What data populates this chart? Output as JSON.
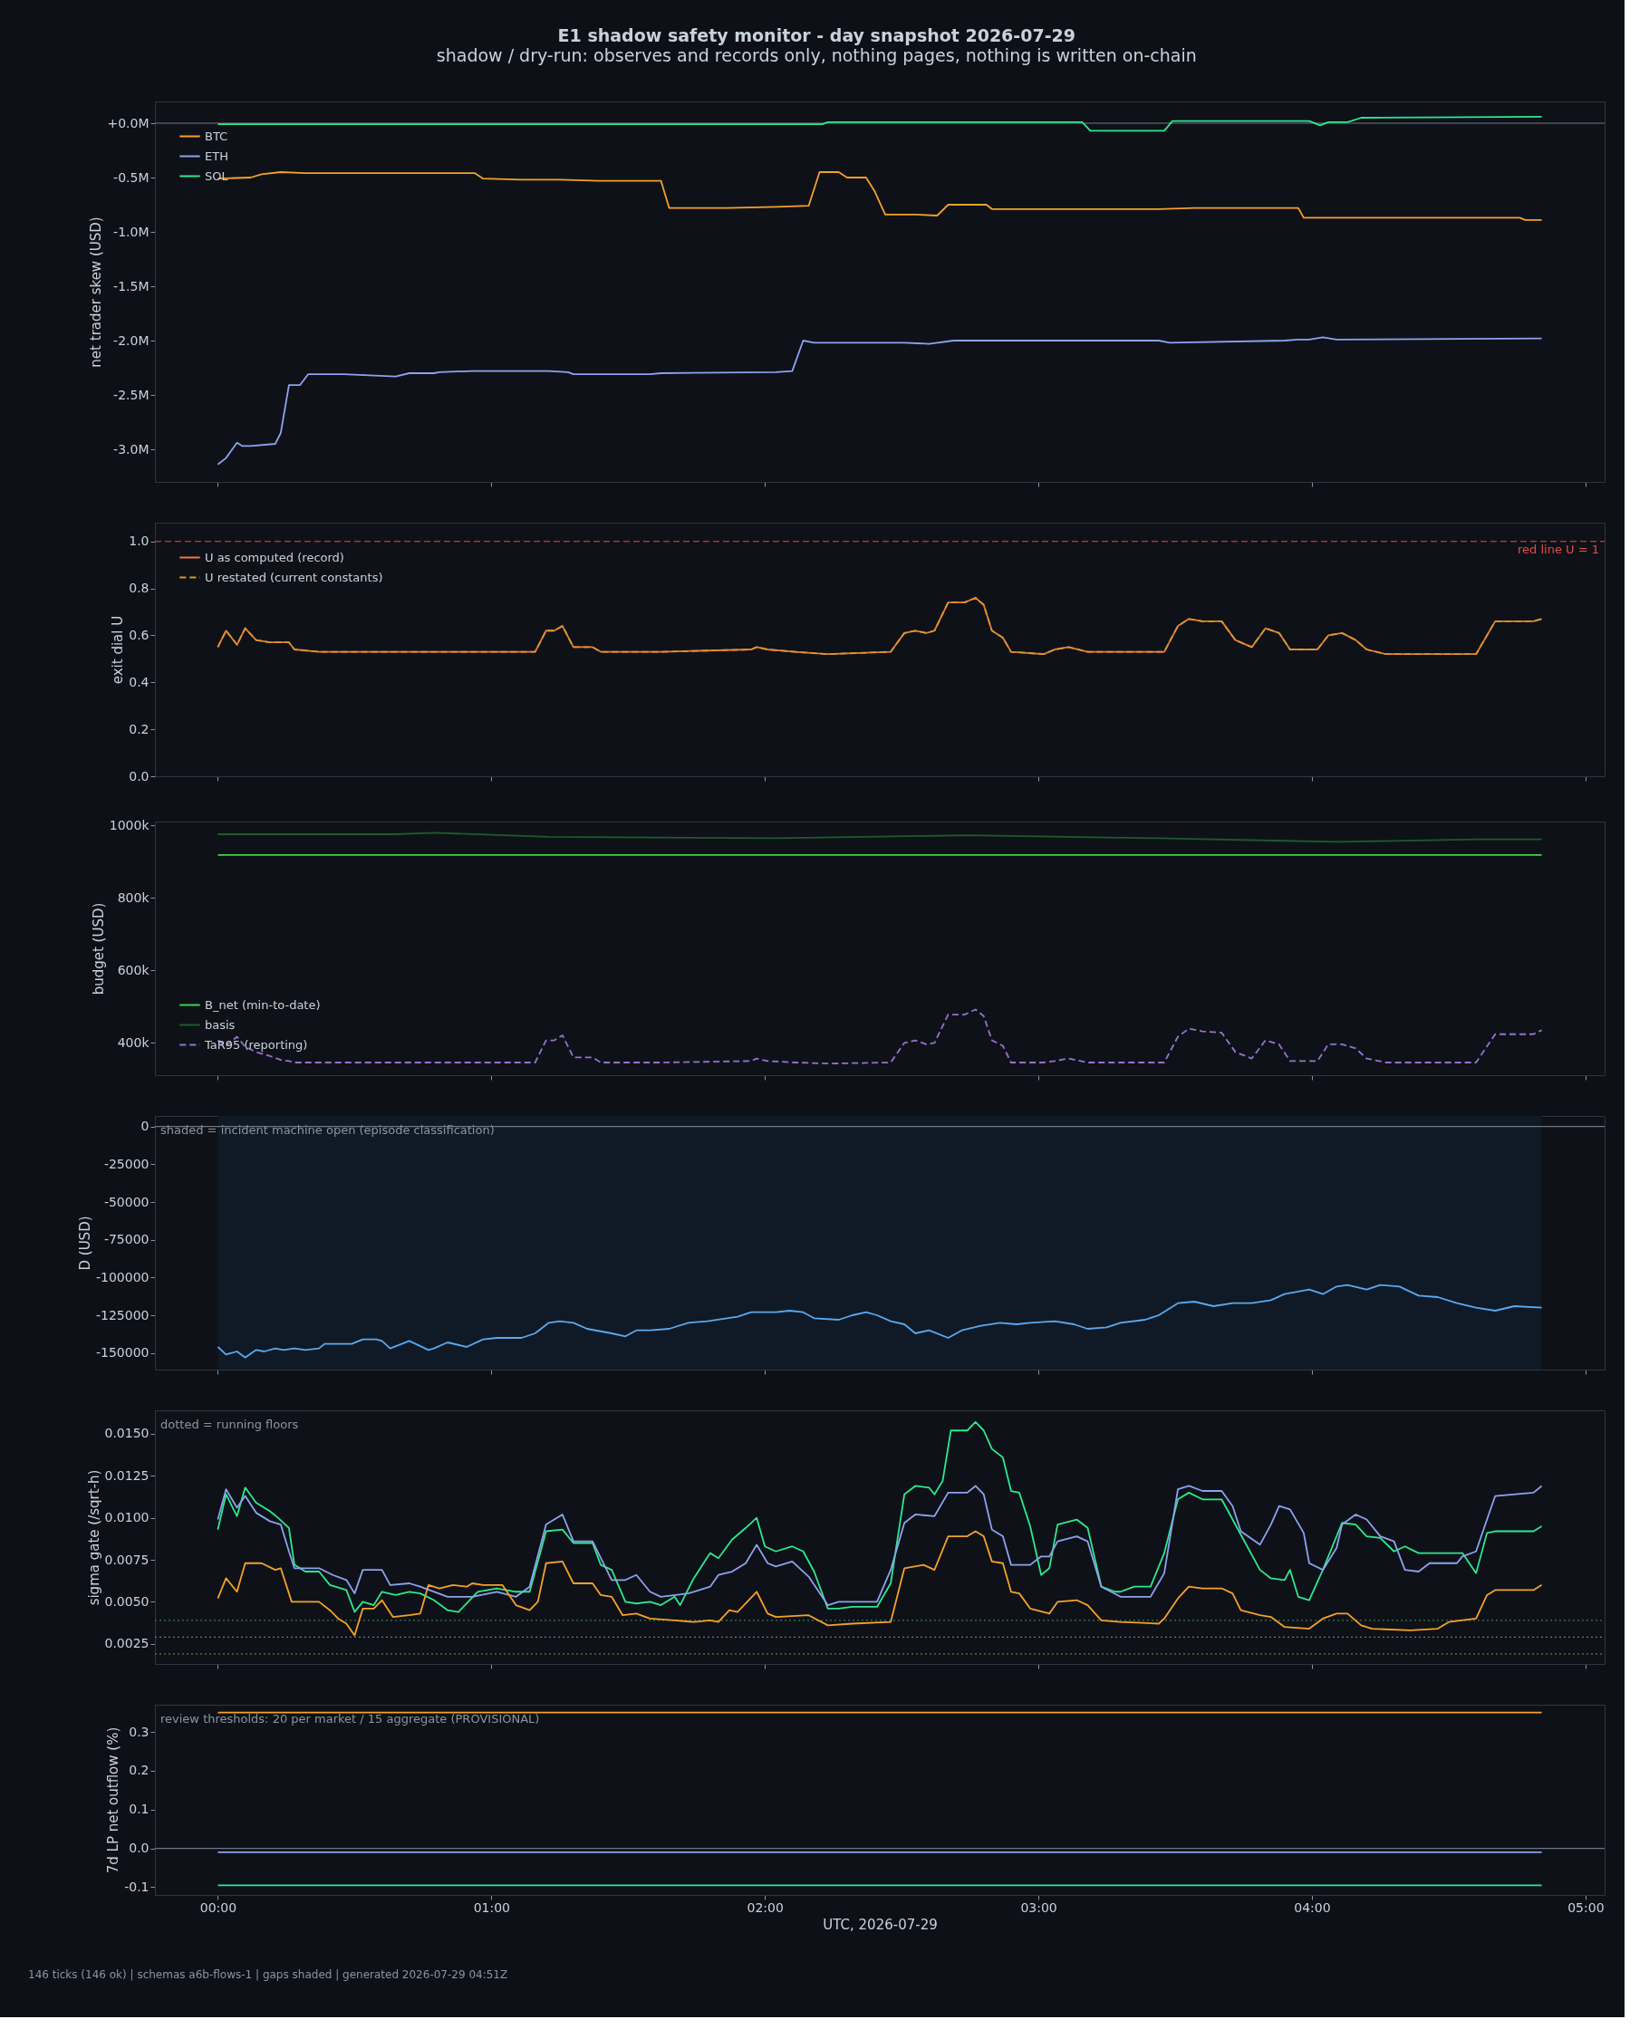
{
  "chart_data": [
    {
      "type": "line",
      "title": "E1 shadow safety monitor - day snapshot 2026-07-29",
      "subtitle": "shadow / dry-run: observes and records only, nothing pages, nothing is written on-chain",
      "ylabel": "net trader skew (USD)",
      "legend": "top left",
      "tick_labels": "y",
      "xlim": [
        -0.23,
        5.07
      ],
      "xticks": [
        {
          "value": 0,
          "label": null
        },
        {
          "value": 1,
          "label": null
        },
        {
          "value": 2,
          "label": null
        },
        {
          "value": 3,
          "label": null
        },
        {
          "value": 4,
          "label": null
        },
        {
          "value": 5,
          "label": null
        }
      ],
      "ylim": [
        -3.3,
        0.2
      ],
      "yticks": [
        {
          "value": 0,
          "label": "+0.0M"
        },
        {
          "value": -0.5,
          "label": "-0.5M"
        },
        {
          "value": -1,
          "label": "-1.0M"
        },
        {
          "value": -1.5,
          "label": "-1.5M"
        },
        {
          "value": -2,
          "label": "-2.0M"
        },
        {
          "value": -2.5,
          "label": "-2.5M"
        },
        {
          "value": -3,
          "label": "-3.0M"
        }
      ],
      "ref_lines": [
        {
          "axis": "y",
          "value": 0,
          "color": "#6e7681"
        }
      ],
      "series": [
        {
          "name": "BTC",
          "color": "#f5a12a",
          "x": [
            0,
            0.12,
            0.16,
            0.23,
            0.32,
            0.42,
            0.65,
            0.84,
            0.94,
            0.97,
            1.11,
            1.25,
            1.39,
            1.62,
            1.65,
            1.86,
            2.04,
            2.16,
            2.2,
            2.27,
            2.3,
            2.37,
            2.4,
            2.44,
            2.55,
            2.63,
            2.67,
            2.81,
            2.83,
            3.11,
            3.44,
            3.57,
            3.95,
            3.97,
            4.36,
            4.6,
            4.76,
            4.78,
            4.84
          ],
          "values": [
            -0.51,
            -0.5,
            -0.47,
            -0.45,
            -0.46,
            -0.46,
            -0.46,
            -0.46,
            -0.46,
            -0.51,
            -0.52,
            -0.52,
            -0.53,
            -0.53,
            -0.78,
            -0.78,
            -0.77,
            -0.76,
            -0.45,
            -0.45,
            -0.5,
            -0.5,
            -0.62,
            -0.84,
            -0.84,
            -0.85,
            -0.75,
            -0.75,
            -0.79,
            -0.79,
            -0.79,
            -0.78,
            -0.78,
            -0.87,
            -0.87,
            -0.87,
            -0.87,
            -0.89,
            -0.89
          ]
        },
        {
          "name": "ETH",
          "color": "#8da2f0",
          "x": [
            0,
            0.03,
            0.07,
            0.09,
            0.12,
            0.21,
            0.23,
            0.26,
            0.3,
            0.33,
            0.46,
            0.65,
            0.7,
            0.79,
            0.81,
            0.93,
            1.21,
            1.28,
            1.3,
            1.58,
            1.62,
            2.04,
            2.1,
            2.14,
            2.18,
            2.51,
            2.6,
            2.69,
            3.44,
            3.48,
            3.9,
            3.95,
            3.99,
            4.04,
            4.09,
            4.84
          ],
          "values": [
            -3.14,
            -3.08,
            -2.94,
            -2.97,
            -2.97,
            -2.95,
            -2.85,
            -2.41,
            -2.41,
            -2.31,
            -2.31,
            -2.33,
            -2.3,
            -2.3,
            -2.29,
            -2.28,
            -2.28,
            -2.29,
            -2.31,
            -2.31,
            -2.3,
            -2.29,
            -2.28,
            -2.0,
            -2.02,
            -2.02,
            -2.03,
            -2.0,
            -2.0,
            -2.02,
            -2.0,
            -1.99,
            -1.99,
            -1.97,
            -1.99,
            -1.98
          ]
        },
        {
          "name": "SOL",
          "color": "#2ee88f",
          "x": [
            0,
            2.21,
            2.23,
            3.16,
            3.19,
            3.46,
            3.49,
            3.99,
            4.03,
            4.06,
            4.13,
            4.18,
            4.84
          ],
          "values": [
            -0.01,
            -0.01,
            0.01,
            0.01,
            -0.07,
            -0.07,
            0.02,
            0.02,
            -0.02,
            0.01,
            0.01,
            0.05,
            0.06
          ]
        }
      ]
    },
    {
      "type": "line",
      "ylabel": "exit dial U",
      "legend": "top left",
      "tick_labels": "y",
      "xlim": [
        -0.23,
        5.07
      ],
      "xticks": [
        {
          "value": 0,
          "label": null
        },
        {
          "value": 1,
          "label": null
        },
        {
          "value": 2,
          "label": null
        },
        {
          "value": 3,
          "label": null
        },
        {
          "value": 4,
          "label": null
        },
        {
          "value": 5,
          "label": null
        }
      ],
      "ylim": [
        0,
        1.08
      ],
      "yticks": [
        {
          "value": 0,
          "label": "0.0"
        },
        0.2,
        0.4,
        0.6,
        0.8,
        {
          "value": 1,
          "label": "1.0"
        }
      ],
      "ref_lines": [
        {
          "axis": "y",
          "value": 1,
          "label": "red line U = 1",
          "color": "#e84a4a",
          "line_style": "dashed"
        }
      ],
      "series": [
        {
          "name": "U as computed (record)",
          "color": "#f0783c",
          "line_style": "solid",
          "x": [
            0,
            0.03,
            0.07,
            0.1,
            0.14,
            0.19,
            0.23,
            0.26,
            0.28,
            0.37,
            0.65,
            1.16,
            1.2,
            1.23,
            1.26,
            1.3,
            1.37,
            1.4,
            1.62,
            1.95,
            1.97,
            2.01,
            2.11,
            2.23,
            2.46,
            2.51,
            2.55,
            2.59,
            2.62,
            2.67,
            2.73,
            2.77,
            2.8,
            2.83,
            2.87,
            2.9,
            3.02,
            3.06,
            3.11,
            3.18,
            3.25,
            3.46,
            3.51,
            3.55,
            3.6,
            3.67,
            3.72,
            3.78,
            3.83,
            3.88,
            3.92,
            4.02,
            4.06,
            4.11,
            4.16,
            4.2,
            4.27,
            4.6,
            4.67,
            4.81,
            4.84
          ],
          "values": [
            0.55,
            0.62,
            0.56,
            0.63,
            0.58,
            0.57,
            0.57,
            0.57,
            0.54,
            0.53,
            0.53,
            0.53,
            0.62,
            0.62,
            0.64,
            0.55,
            0.55,
            0.53,
            0.53,
            0.54,
            0.55,
            0.54,
            0.53,
            0.52,
            0.53,
            0.61,
            0.62,
            0.61,
            0.62,
            0.74,
            0.74,
            0.76,
            0.73,
            0.62,
            0.59,
            0.53,
            0.52,
            0.54,
            0.55,
            0.53,
            0.53,
            0.53,
            0.64,
            0.67,
            0.66,
            0.66,
            0.58,
            0.55,
            0.63,
            0.61,
            0.54,
            0.54,
            0.6,
            0.61,
            0.58,
            0.54,
            0.52,
            0.52,
            0.66,
            0.66,
            0.67
          ]
        },
        {
          "name": "U restated (current constants)",
          "color": "#d49a2a",
          "line_style": "dashed",
          "x": [
            0,
            0.03,
            0.07,
            0.1,
            0.14,
            0.19,
            0.23,
            0.26,
            0.28,
            0.37,
            0.65,
            1.16,
            1.2,
            1.23,
            1.26,
            1.3,
            1.37,
            1.4,
            1.62,
            1.95,
            1.97,
            2.01,
            2.11,
            2.23,
            2.46,
            2.51,
            2.55,
            2.59,
            2.62,
            2.67,
            2.73,
            2.77,
            2.8,
            2.83,
            2.87,
            2.9,
            3.02,
            3.06,
            3.11,
            3.18,
            3.25,
            3.46,
            3.51,
            3.55,
            3.6,
            3.67,
            3.72,
            3.78,
            3.83,
            3.88,
            3.92,
            4.02,
            4.06,
            4.11,
            4.16,
            4.2,
            4.27,
            4.6,
            4.67,
            4.81,
            4.84
          ],
          "values": [
            0.55,
            0.62,
            0.56,
            0.63,
            0.58,
            0.57,
            0.57,
            0.57,
            0.54,
            0.53,
            0.53,
            0.53,
            0.62,
            0.62,
            0.64,
            0.55,
            0.55,
            0.53,
            0.53,
            0.54,
            0.55,
            0.54,
            0.53,
            0.52,
            0.53,
            0.61,
            0.62,
            0.61,
            0.62,
            0.74,
            0.74,
            0.76,
            0.73,
            0.62,
            0.59,
            0.53,
            0.52,
            0.54,
            0.55,
            0.53,
            0.53,
            0.53,
            0.64,
            0.67,
            0.66,
            0.66,
            0.58,
            0.55,
            0.63,
            0.61,
            0.54,
            0.54,
            0.6,
            0.61,
            0.58,
            0.54,
            0.52,
            0.52,
            0.66,
            0.66,
            0.67
          ]
        }
      ]
    },
    {
      "type": "line",
      "ylabel": "budget (USD)",
      "legend": "bottom left",
      "tick_labels": "y",
      "xlim": [
        -0.23,
        5.07
      ],
      "xticks": [
        {
          "value": 0,
          "label": null
        },
        {
          "value": 1,
          "label": null
        },
        {
          "value": 2,
          "label": null
        },
        {
          "value": 3,
          "label": null
        },
        {
          "value": 4,
          "label": null
        },
        {
          "value": 5,
          "label": null
        }
      ],
      "ylim": [
        311000,
        1010000
      ],
      "yticks": [
        {
          "value": 400000,
          "label": "400k"
        },
        {
          "value": 600000,
          "label": "600k"
        },
        {
          "value": 800000,
          "label": "800k"
        },
        {
          "value": 1000000,
          "label": "1000k"
        }
      ],
      "series": [
        {
          "name": "B_net (min-to-date)",
          "color": "#3fd150",
          "line_style": "solid",
          "x": [
            0,
            4.84
          ],
          "values": [
            918000,
            918000
          ]
        },
        {
          "name": "basis",
          "color": "#1f5a2a",
          "line_style": "solid",
          "x": [
            0,
            0.65,
            0.79,
            1.21,
            2.04,
            2.74,
            3.44,
            3.9,
            4.09,
            4.6,
            4.84
          ],
          "values": [
            975000,
            975000,
            979000,
            968000,
            964000,
            972000,
            964000,
            957000,
            954000,
            961000,
            961000
          ]
        },
        {
          "name": "TaR95 (reporting)",
          "color": "#9b6fd0",
          "line_style": "dashed",
          "x": [
            0,
            0.03,
            0.07,
            0.1,
            0.14,
            0.19,
            0.23,
            0.26,
            0.28,
            0.37,
            0.65,
            1.16,
            1.2,
            1.23,
            1.26,
            1.3,
            1.37,
            1.4,
            1.62,
            1.95,
            1.97,
            2.01,
            2.11,
            2.23,
            2.46,
            2.51,
            2.55,
            2.59,
            2.62,
            2.67,
            2.73,
            2.77,
            2.8,
            2.83,
            2.87,
            2.9,
            3.02,
            3.06,
            3.11,
            3.18,
            3.25,
            3.46,
            3.51,
            3.55,
            3.6,
            3.67,
            3.72,
            3.78,
            3.83,
            3.88,
            3.92,
            4.02,
            4.06,
            4.11,
            4.16,
            4.2,
            4.27,
            4.6,
            4.67,
            4.81,
            4.84
          ],
          "values": [
            407000,
            392000,
            417000,
            389000,
            375000,
            364000,
            353000,
            350000,
            346000,
            346000,
            346000,
            346000,
            407000,
            407000,
            421000,
            360000,
            360000,
            346000,
            346000,
            350000,
            357000,
            350000,
            346000,
            343000,
            346000,
            400000,
            407000,
            396000,
            400000,
            478000,
            478000,
            492000,
            474000,
            407000,
            392000,
            346000,
            346000,
            350000,
            357000,
            346000,
            346000,
            346000,
            417000,
            439000,
            432000,
            428000,
            375000,
            357000,
            407000,
            396000,
            350000,
            350000,
            396000,
            396000,
            385000,
            357000,
            346000,
            346000,
            424000,
            424000,
            435000
          ]
        }
      ]
    },
    {
      "type": "line",
      "ylabel": "D (USD)",
      "tick_labels": "y",
      "xlim": [
        -0.23,
        5.07
      ],
      "xticks": [
        {
          "value": 0,
          "label": null
        },
        {
          "value": 1,
          "label": null
        },
        {
          "value": 2,
          "label": null
        },
        {
          "value": 3,
          "label": null
        },
        {
          "value": 4,
          "label": null
        },
        {
          "value": 5,
          "label": null
        }
      ],
      "ylim": [
        -161000,
        7000
      ],
      "yticks": [
        0,
        -25000,
        -50000,
        -75000,
        -100000,
        -125000,
        -150000
      ],
      "ref_lines": [
        {
          "axis": "y",
          "value": 0,
          "color": "#6e7681"
        }
      ],
      "bands": [
        {
          "axis": "x",
          "from": 0,
          "to": 4.84,
          "label": "shaded = incident machine open (episode classification)",
          "color": "#0f1a26"
        }
      ],
      "series": [
        {
          "color": "#5aa9f0",
          "x": [
            0,
            0.03,
            0.07,
            0.1,
            0.14,
            0.17,
            0.21,
            0.24,
            0.28,
            0.32,
            0.37,
            0.39,
            0.49,
            0.53,
            0.58,
            0.6,
            0.63,
            0.7,
            0.77,
            0.79,
            0.84,
            0.91,
            0.97,
            1.02,
            1.11,
            1.16,
            1.21,
            1.25,
            1.3,
            1.35,
            1.44,
            1.49,
            1.53,
            1.58,
            1.65,
            1.72,
            1.79,
            1.9,
            1.95,
            2.04,
            2.09,
            2.14,
            2.18,
            2.27,
            2.32,
            2.37,
            2.41,
            2.46,
            2.51,
            2.55,
            2.6,
            2.67,
            2.72,
            2.79,
            2.86,
            2.92,
            2.97,
            3.06,
            3.13,
            3.18,
            3.25,
            3.3,
            3.39,
            3.44,
            3.51,
            3.57,
            3.64,
            3.71,
            3.78,
            3.85,
            3.9,
            3.99,
            4.04,
            4.09,
            4.13,
            4.2,
            4.25,
            4.32,
            4.39,
            4.46,
            4.53,
            4.6,
            4.67,
            4.74,
            4.84
          ],
          "values": [
            -146000,
            -151000,
            -149000,
            -153000,
            -148000,
            -149000,
            -147000,
            -148000,
            -147000,
            -148000,
            -147000,
            -144000,
            -144000,
            -141000,
            -141000,
            -142000,
            -147000,
            -142000,
            -148000,
            -147000,
            -143000,
            -146000,
            -141000,
            -140000,
            -140000,
            -137000,
            -130000,
            -129000,
            -130000,
            -134000,
            -137000,
            -139000,
            -135000,
            -135000,
            -134000,
            -130000,
            -129000,
            -126000,
            -123000,
            -123000,
            -122000,
            -123000,
            -127000,
            -128000,
            -125000,
            -123000,
            -125000,
            -129000,
            -131000,
            -137000,
            -135000,
            -140000,
            -135000,
            -132000,
            -130000,
            -131000,
            -130000,
            -129000,
            -131000,
            -134000,
            -133000,
            -130000,
            -128000,
            -125000,
            -117000,
            -116000,
            -119000,
            -117000,
            -117000,
            -115000,
            -111000,
            -108000,
            -111000,
            -106000,
            -105000,
            -108000,
            -105000,
            -106000,
            -112000,
            -113000,
            -117000,
            -120000,
            -122000,
            -119000,
            -120000
          ]
        }
      ]
    },
    {
      "type": "line",
      "ylabel": "sigma gate (/sqrt-h)",
      "tick_labels": "y",
      "annotations": [
        "dotted = running floors"
      ],
      "xlim": [
        -0.23,
        5.07
      ],
      "xticks": [
        {
          "value": 0,
          "label": null
        },
        {
          "value": 1,
          "label": null
        },
        {
          "value": 2,
          "label": null
        },
        {
          "value": 3,
          "label": null
        },
        {
          "value": 4,
          "label": null
        },
        {
          "value": 5,
          "label": null
        }
      ],
      "ylim": [
        0.0013,
        0.0164
      ],
      "yticks": [
        0.0025,
        {
          "value": 0.005,
          "label": "0.0050"
        },
        {
          "value": 0.0075,
          "label": "0.0075"
        },
        {
          "value": 0.01,
          "label": "0.0100"
        },
        0.0125,
        {
          "value": 0.015,
          "label": "0.0150"
        }
      ],
      "ref_lines": [
        {
          "axis": "y",
          "value": 0.0039,
          "color": "#3a7a4a",
          "line_style": "dotted"
        },
        {
          "axis": "y",
          "value": 0.0029,
          "color": "#6e7681",
          "line_style": "dotted"
        },
        {
          "axis": "y",
          "value": 0.0019,
          "color": "#8a6a2a",
          "line_style": "dotted"
        }
      ],
      "series": [
        {
          "color": "#2ee88f",
          "x": [
            0,
            0.03,
            0.07,
            0.1,
            0.14,
            0.19,
            0.22,
            0.26,
            0.28,
            0.32,
            0.37,
            0.41,
            0.47,
            0.5,
            0.53,
            0.57,
            0.6,
            0.65,
            0.7,
            0.74,
            0.79,
            0.84,
            0.88,
            0.95,
            1.02,
            1.09,
            1.14,
            1.2,
            1.26,
            1.3,
            1.37,
            1.4,
            1.44,
            1.49,
            1.53,
            1.58,
            1.62,
            1.67,
            1.69,
            1.74,
            1.8,
            1.83,
            1.88,
            1.93,
            1.97,
            2.0,
            2.04,
            2.1,
            2.14,
            2.18,
            2.23,
            2.27,
            2.32,
            2.41,
            2.46,
            2.51,
            2.55,
            2.6,
            2.62,
            2.65,
            2.68,
            2.74,
            2.77,
            2.8,
            2.83,
            2.87,
            2.9,
            2.93,
            2.97,
            3.01,
            3.04,
            3.07,
            3.14,
            3.18,
            3.23,
            3.28,
            3.3,
            3.35,
            3.41,
            3.46,
            3.51,
            3.55,
            3.6,
            3.67,
            3.74,
            3.81,
            3.85,
            3.9,
            3.92,
            3.95,
            3.99,
            4.04,
            4.11,
            4.16,
            4.2,
            4.25,
            4.3,
            4.34,
            4.39,
            4.55,
            4.6,
            4.64,
            4.67,
            4.81,
            4.84
          ],
          "values": [
            0.0093,
            0.0114,
            0.0101,
            0.0118,
            0.0109,
            0.0104,
            0.01,
            0.0094,
            0.0072,
            0.0068,
            0.0068,
            0.006,
            0.0057,
            0.0044,
            0.005,
            0.0048,
            0.0056,
            0.0054,
            0.0056,
            0.0055,
            0.0051,
            0.0045,
            0.0044,
            0.0056,
            0.0058,
            0.0056,
            0.0056,
            0.0092,
            0.0093,
            0.0085,
            0.0085,
            0.0072,
            0.0069,
            0.005,
            0.0049,
            0.005,
            0.0048,
            0.0053,
            0.0048,
            0.0064,
            0.0079,
            0.0076,
            0.0087,
            0.0094,
            0.01,
            0.0083,
            0.008,
            0.0083,
            0.008,
            0.0068,
            0.0046,
            0.0046,
            0.0047,
            0.0047,
            0.0061,
            0.0114,
            0.0119,
            0.0118,
            0.0114,
            0.0122,
            0.0152,
            0.0152,
            0.0157,
            0.0152,
            0.0141,
            0.0136,
            0.0116,
            0.0115,
            0.0095,
            0.0066,
            0.007,
            0.0096,
            0.0099,
            0.0094,
            0.0059,
            0.0056,
            0.0056,
            0.0059,
            0.0059,
            0.0079,
            0.0111,
            0.0115,
            0.0111,
            0.0111,
            0.009,
            0.0069,
            0.0064,
            0.0063,
            0.0069,
            0.0053,
            0.0051,
            0.0069,
            0.0097,
            0.0096,
            0.0089,
            0.0088,
            0.008,
            0.0083,
            0.0079,
            0.0079,
            0.0067,
            0.0091,
            0.0092,
            0.0092,
            0.0095
          ]
        },
        {
          "color": "#8da2f0",
          "x": [
            0,
            0.03,
            0.07,
            0.1,
            0.14,
            0.19,
            0.23,
            0.26,
            0.28,
            0.37,
            0.42,
            0.47,
            0.5,
            0.53,
            0.6,
            0.63,
            0.7,
            0.74,
            0.84,
            0.93,
            1.02,
            1.09,
            1.14,
            1.2,
            1.26,
            1.3,
            1.37,
            1.44,
            1.49,
            1.53,
            1.58,
            1.62,
            1.72,
            1.74,
            1.8,
            1.83,
            1.88,
            1.93,
            1.97,
            2.01,
            2.04,
            2.1,
            2.16,
            2.23,
            2.27,
            2.41,
            2.46,
            2.51,
            2.55,
            2.62,
            2.67,
            2.74,
            2.77,
            2.8,
            2.83,
            2.87,
            2.9,
            2.97,
            3.01,
            3.04,
            3.07,
            3.14,
            3.18,
            3.23,
            3.3,
            3.41,
            3.46,
            3.51,
            3.55,
            3.6,
            3.67,
            3.71,
            3.74,
            3.81,
            3.85,
            3.88,
            3.92,
            3.97,
            3.99,
            4.04,
            4.09,
            4.11,
            4.16,
            4.2,
            4.25,
            4.3,
            4.34,
            4.39,
            4.43,
            4.53,
            4.55,
            4.6,
            4.64,
            4.67,
            4.81,
            4.84
          ],
          "values": [
            0.0099,
            0.0117,
            0.0106,
            0.0113,
            0.0103,
            0.0098,
            0.0096,
            0.008,
            0.007,
            0.007,
            0.0066,
            0.0063,
            0.0055,
            0.0069,
            0.0069,
            0.006,
            0.0061,
            0.0059,
            0.0053,
            0.0053,
            0.0056,
            0.0053,
            0.0059,
            0.0096,
            0.0102,
            0.0086,
            0.0086,
            0.0063,
            0.0063,
            0.0066,
            0.0056,
            0.0053,
            0.0055,
            0.0056,
            0.0059,
            0.0066,
            0.0068,
            0.0073,
            0.0084,
            0.0073,
            0.0071,
            0.0074,
            0.0065,
            0.0048,
            0.005,
            0.005,
            0.0069,
            0.0097,
            0.0102,
            0.0101,
            0.0115,
            0.0115,
            0.0119,
            0.0114,
            0.0093,
            0.0089,
            0.0072,
            0.0072,
            0.0077,
            0.0077,
            0.0086,
            0.0089,
            0.0086,
            0.0059,
            0.0053,
            0.0053,
            0.0067,
            0.0117,
            0.0119,
            0.0116,
            0.0116,
            0.0107,
            0.0092,
            0.0084,
            0.0096,
            0.0107,
            0.0105,
            0.0091,
            0.0073,
            0.0069,
            0.0082,
            0.0096,
            0.0102,
            0.0099,
            0.0089,
            0.0086,
            0.0069,
            0.0068,
            0.0073,
            0.0073,
            0.0077,
            0.008,
            0.0099,
            0.0113,
            0.0115,
            0.0119
          ]
        },
        {
          "color": "#f5a12a",
          "x": [
            0,
            0.03,
            0.07,
            0.1,
            0.16,
            0.21,
            0.23,
            0.27,
            0.37,
            0.41,
            0.44,
            0.47,
            0.5,
            0.53,
            0.57,
            0.6,
            0.64,
            0.7,
            0.74,
            0.77,
            0.81,
            0.86,
            0.91,
            0.93,
            0.97,
            1.04,
            1.09,
            1.14,
            1.17,
            1.2,
            1.26,
            1.3,
            1.37,
            1.4,
            1.44,
            1.48,
            1.53,
            1.58,
            1.67,
            1.74,
            1.8,
            1.83,
            1.87,
            1.9,
            1.97,
            2.01,
            2.04,
            2.16,
            2.23,
            2.32,
            2.46,
            2.51,
            2.58,
            2.62,
            2.67,
            2.74,
            2.77,
            2.8,
            2.83,
            2.87,
            2.9,
            2.93,
            2.97,
            3.04,
            3.07,
            3.14,
            3.18,
            3.23,
            3.3,
            3.44,
            3.46,
            3.51,
            3.55,
            3.6,
            3.67,
            3.71,
            3.74,
            3.81,
            3.85,
            3.9,
            3.99,
            4.04,
            4.09,
            4.13,
            4.18,
            4.22,
            4.36,
            4.46,
            4.5,
            4.6,
            4.64,
            4.67,
            4.81,
            4.84
          ],
          "values": [
            0.0052,
            0.0064,
            0.0056,
            0.0073,
            0.0073,
            0.0069,
            0.007,
            0.005,
            0.005,
            0.0045,
            0.004,
            0.0037,
            0.003,
            0.0046,
            0.0046,
            0.0051,
            0.0041,
            0.0042,
            0.0043,
            0.006,
            0.0058,
            0.006,
            0.0059,
            0.0061,
            0.006,
            0.006,
            0.0048,
            0.0045,
            0.005,
            0.0073,
            0.0074,
            0.0061,
            0.0061,
            0.0054,
            0.0053,
            0.0042,
            0.0043,
            0.004,
            0.0039,
            0.0038,
            0.0039,
            0.0038,
            0.0045,
            0.0044,
            0.0056,
            0.0043,
            0.0041,
            0.0042,
            0.0036,
            0.0037,
            0.0038,
            0.007,
            0.0072,
            0.0069,
            0.0089,
            0.0089,
            0.0092,
            0.0089,
            0.0074,
            0.0073,
            0.0056,
            0.0055,
            0.0046,
            0.0043,
            0.005,
            0.0051,
            0.0048,
            0.0039,
            0.0038,
            0.0037,
            0.004,
            0.0052,
            0.0059,
            0.0058,
            0.0058,
            0.0055,
            0.0045,
            0.0042,
            0.0041,
            0.0035,
            0.0034,
            0.004,
            0.0043,
            0.0043,
            0.0036,
            0.0034,
            0.0033,
            0.0034,
            0.0038,
            0.004,
            0.0054,
            0.0057,
            0.0057,
            0.006
          ]
        }
      ]
    },
    {
      "type": "line",
      "ylabel": "7d LP net outflow (%)",
      "xlabel": "UTC, 2026-07-29",
      "annotations": [
        "review thresholds: 20 per market / 15 aggregate (PROVISIONAL)",
        "146 ticks (146 ok) | schemas a6b-flows-1 | gaps shaded | generated 2026-07-29 04:51Z"
      ],
      "xlim": [
        -0.23,
        5.07
      ],
      "xticks": [
        {
          "value": 0,
          "label": "00:00"
        },
        {
          "value": 1,
          "label": "01:00"
        },
        {
          "value": 2,
          "label": "02:00"
        },
        {
          "value": 3,
          "label": "03:00"
        },
        {
          "value": 4,
          "label": "04:00"
        },
        {
          "value": 5,
          "label": "05:00"
        }
      ],
      "ylim": [
        -0.12,
        0.37
      ],
      "yticks": [
        -0.1,
        {
          "value": 0,
          "label": "0.0"
        },
        0.1,
        0.2,
        0.3
      ],
      "ref_lines": [
        {
          "axis": "y",
          "value": 0,
          "color": "#6e7681"
        }
      ],
      "series": [
        {
          "color": "#f5a12a",
          "x": [
            0,
            4.84
          ],
          "values": [
            0.35,
            0.35
          ]
        },
        {
          "color": "#8da2f0",
          "x": [
            0,
            4.84
          ],
          "values": [
            -0.01,
            -0.01
          ]
        },
        {
          "color": "#2ee88f",
          "x": [
            0,
            4.84
          ],
          "values": [
            -0.095,
            -0.095
          ]
        }
      ]
    }
  ]
}
